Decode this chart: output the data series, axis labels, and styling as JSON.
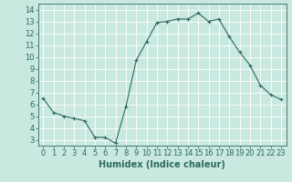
{
  "x": [
    0,
    1,
    2,
    3,
    4,
    5,
    6,
    7,
    8,
    9,
    10,
    11,
    12,
    13,
    14,
    15,
    16,
    17,
    18,
    19,
    20,
    21,
    22,
    23
  ],
  "y": [
    6.5,
    5.3,
    5.0,
    4.8,
    4.6,
    3.2,
    3.2,
    2.7,
    5.8,
    9.7,
    11.3,
    12.9,
    13.0,
    13.2,
    13.2,
    13.7,
    13.0,
    13.2,
    11.7,
    10.4,
    9.3,
    7.6,
    6.8,
    6.4
  ],
  "line_color": "#2e6b5e",
  "marker": "+",
  "marker_size": 3,
  "bg_color": "#c8e8e0",
  "grid_color": "#ffffff",
  "xlabel": "Humidex (Indice chaleur)",
  "xlim": [
    -0.5,
    23.5
  ],
  "ylim": [
    2.5,
    14.5
  ],
  "yticks": [
    3,
    4,
    5,
    6,
    7,
    8,
    9,
    10,
    11,
    12,
    13,
    14
  ],
  "xticks": [
    0,
    1,
    2,
    3,
    4,
    5,
    6,
    7,
    8,
    9,
    10,
    11,
    12,
    13,
    14,
    15,
    16,
    17,
    18,
    19,
    20,
    21,
    22,
    23
  ],
  "tick_color": "#2e6b5e",
  "label_color": "#2e6b5e",
  "font_size": 6.0,
  "xlabel_fontsize": 7.0,
  "linewidth": 0.8,
  "markeredgewidth": 0.8
}
